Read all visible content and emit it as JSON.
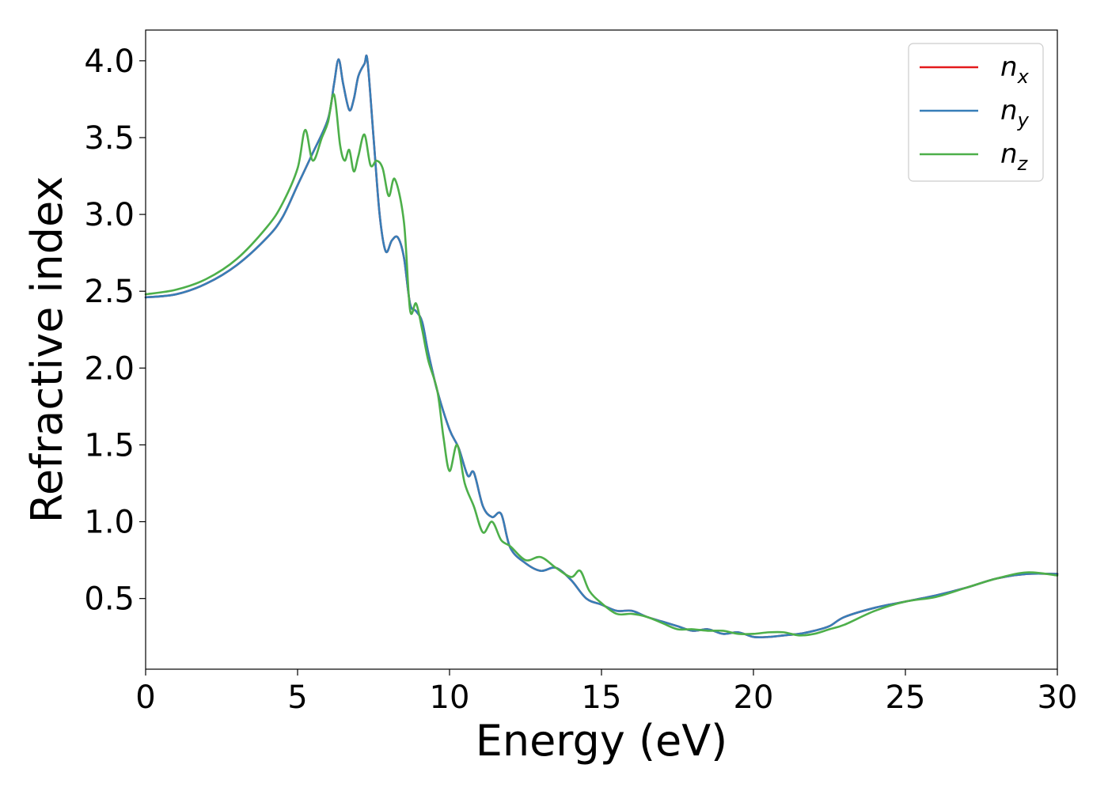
{
  "chart_data": {
    "type": "line",
    "xlabel": "Energy (eV)",
    "ylabel": "Refractive index",
    "xlim": [
      0,
      30
    ],
    "ylim": [
      0.04,
      4.2
    ],
    "xticks": [
      0,
      5,
      10,
      15,
      20,
      25,
      30
    ],
    "yticks": [
      0.5,
      1.0,
      1.5,
      2.0,
      2.5,
      3.0,
      3.5,
      4.0
    ],
    "xtick_labels": [
      "0",
      "5",
      "10",
      "15",
      "20",
      "25",
      "30"
    ],
    "ytick_labels": [
      "0.5",
      "1.0",
      "1.5",
      "2.0",
      "2.5",
      "3.0",
      "3.5",
      "4.0"
    ],
    "grid": false,
    "legend": {
      "position": "top-right"
    },
    "series": [
      {
        "name": "n",
        "sub": "x",
        "color": "#e41a1c",
        "x": [
          0,
          1,
          2,
          3,
          4,
          4.5,
          5,
          5.5,
          6,
          6.2,
          6.35,
          6.5,
          6.7,
          6.85,
          7,
          7.2,
          7.3,
          7.5,
          7.7,
          7.9,
          8.1,
          8.3,
          8.5,
          8.7,
          8.9,
          9.1,
          9.3,
          9.6,
          10,
          10.3,
          10.6,
          10.8,
          11.1,
          11.4,
          11.7,
          12,
          12.5,
          13,
          13.5,
          14,
          14.5,
          15,
          15.5,
          16,
          16.5,
          17,
          17.5,
          18,
          18.5,
          19,
          19.5,
          20,
          20.5,
          21,
          21.5,
          22,
          22.5,
          23,
          24,
          25,
          26,
          27,
          28,
          29,
          30
        ],
        "y": [
          2.46,
          2.48,
          2.55,
          2.67,
          2.85,
          2.98,
          3.19,
          3.4,
          3.62,
          3.85,
          4.01,
          3.85,
          3.68,
          3.75,
          3.9,
          3.98,
          4.0,
          3.5,
          3.0,
          2.76,
          2.83,
          2.85,
          2.72,
          2.42,
          2.37,
          2.3,
          2.1,
          1.85,
          1.6,
          1.48,
          1.3,
          1.32,
          1.1,
          1.03,
          1.05,
          0.83,
          0.73,
          0.68,
          0.7,
          0.62,
          0.5,
          0.46,
          0.42,
          0.42,
          0.38,
          0.35,
          0.32,
          0.29,
          0.3,
          0.27,
          0.28,
          0.25,
          0.25,
          0.26,
          0.27,
          0.29,
          0.32,
          0.38,
          0.44,
          0.48,
          0.52,
          0.57,
          0.63,
          0.66,
          0.66
        ]
      },
      {
        "name": "n",
        "sub": "y",
        "color": "#377eb8",
        "x": [
          0,
          1,
          2,
          3,
          4,
          4.5,
          5,
          5.5,
          6,
          6.2,
          6.35,
          6.5,
          6.7,
          6.85,
          7,
          7.2,
          7.3,
          7.5,
          7.7,
          7.9,
          8.1,
          8.3,
          8.5,
          8.7,
          8.9,
          9.1,
          9.3,
          9.6,
          10,
          10.3,
          10.6,
          10.8,
          11.1,
          11.4,
          11.7,
          12,
          12.5,
          13,
          13.5,
          14,
          14.5,
          15,
          15.5,
          16,
          16.5,
          17,
          17.5,
          18,
          18.5,
          19,
          19.5,
          20,
          20.5,
          21,
          21.5,
          22,
          22.5,
          23,
          24,
          25,
          26,
          27,
          28,
          29,
          30
        ],
        "y": [
          2.46,
          2.48,
          2.55,
          2.67,
          2.85,
          2.98,
          3.19,
          3.4,
          3.62,
          3.85,
          4.01,
          3.85,
          3.68,
          3.75,
          3.9,
          3.98,
          4.0,
          3.5,
          3.0,
          2.76,
          2.83,
          2.85,
          2.72,
          2.42,
          2.37,
          2.3,
          2.1,
          1.85,
          1.6,
          1.48,
          1.3,
          1.32,
          1.1,
          1.03,
          1.05,
          0.83,
          0.73,
          0.68,
          0.7,
          0.62,
          0.5,
          0.46,
          0.42,
          0.42,
          0.38,
          0.35,
          0.32,
          0.29,
          0.3,
          0.27,
          0.28,
          0.25,
          0.25,
          0.26,
          0.27,
          0.29,
          0.32,
          0.38,
          0.44,
          0.48,
          0.52,
          0.57,
          0.63,
          0.66,
          0.66
        ]
      },
      {
        "name": "n",
        "sub": "z",
        "color": "#4daf4a",
        "x": [
          0,
          1,
          2,
          3,
          4,
          4.5,
          5,
          5.25,
          5.5,
          5.8,
          6,
          6.2,
          6.4,
          6.55,
          6.7,
          6.85,
          7,
          7.2,
          7.4,
          7.6,
          7.8,
          8,
          8.2,
          8.5,
          8.7,
          8.9,
          9.1,
          9.3,
          9.6,
          9.8,
          10,
          10.25,
          10.5,
          10.8,
          11.1,
          11.4,
          11.7,
          12,
          12.5,
          13,
          13.5,
          14,
          14.3,
          14.6,
          15,
          15.5,
          16,
          16.5,
          17,
          17.5,
          18,
          18.5,
          19,
          19.5,
          20,
          20.5,
          21,
          21.5,
          22,
          22.5,
          23,
          24,
          25,
          26,
          27,
          28,
          29,
          30
        ],
        "y": [
          2.48,
          2.51,
          2.58,
          2.71,
          2.92,
          3.07,
          3.3,
          3.55,
          3.35,
          3.5,
          3.6,
          3.78,
          3.45,
          3.35,
          3.42,
          3.28,
          3.38,
          3.52,
          3.32,
          3.35,
          3.3,
          3.12,
          3.23,
          2.95,
          2.38,
          2.42,
          2.25,
          2.05,
          1.85,
          1.55,
          1.33,
          1.5,
          1.25,
          1.1,
          0.93,
          1.0,
          0.88,
          0.84,
          0.75,
          0.77,
          0.7,
          0.64,
          0.68,
          0.55,
          0.47,
          0.4,
          0.4,
          0.38,
          0.34,
          0.3,
          0.3,
          0.29,
          0.29,
          0.27,
          0.27,
          0.28,
          0.28,
          0.26,
          0.27,
          0.3,
          0.33,
          0.42,
          0.48,
          0.51,
          0.57,
          0.63,
          0.67,
          0.65
        ]
      }
    ]
  }
}
